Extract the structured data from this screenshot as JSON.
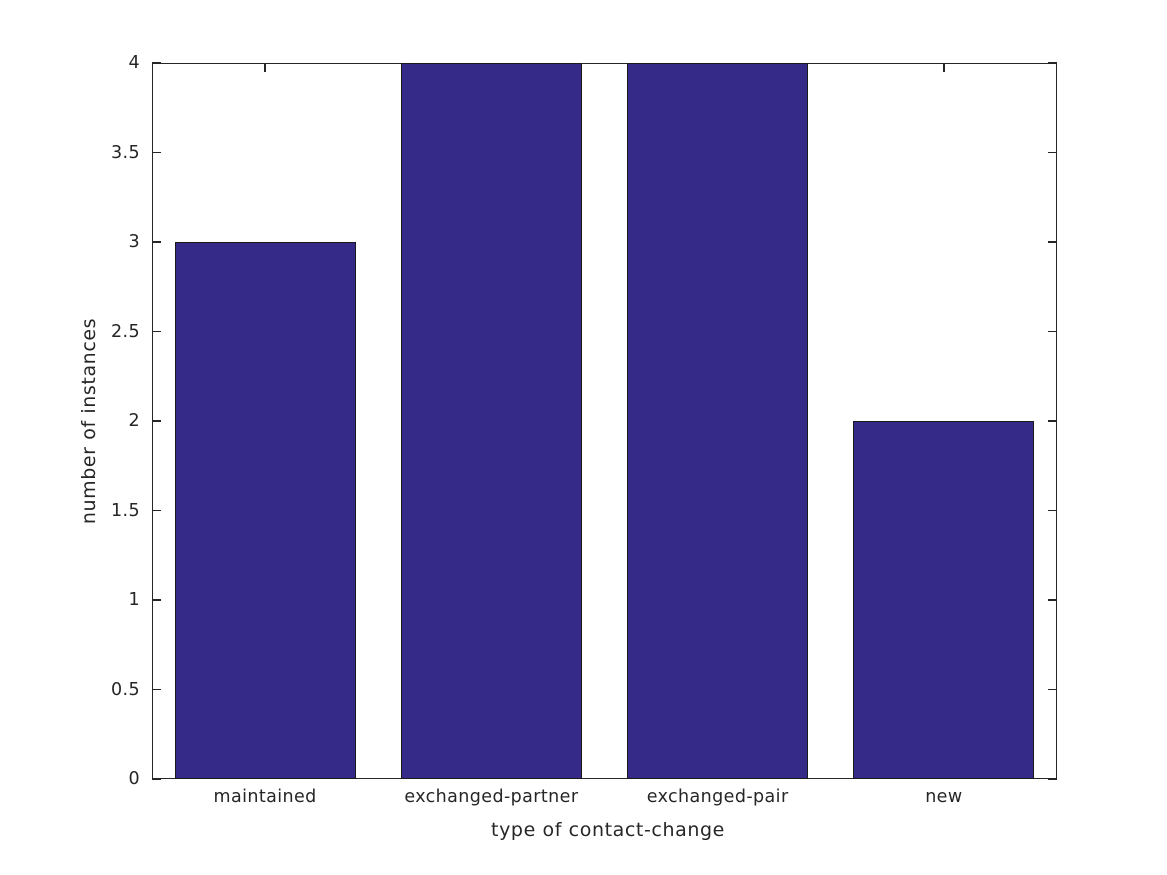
{
  "figure": {
    "background_color": "#ffffff"
  },
  "chart_data": {
    "type": "bar",
    "title": "",
    "xlabel": "type of contact-change",
    "ylabel": "number of instances",
    "categories": [
      "maintained",
      "exchanged-partner",
      "exchanged-pair",
      "new"
    ],
    "values": [
      3,
      4,
      4,
      2
    ],
    "ylim": [
      0,
      4
    ],
    "yticks": [
      0,
      0.5,
      1,
      1.5,
      2,
      2.5,
      3,
      3.5,
      4
    ],
    "ytick_labels": [
      "0",
      "0.5",
      "1",
      "1.5",
      "2",
      "2.5",
      "3",
      "3.5",
      "4"
    ],
    "bar_width_fraction": 0.8,
    "bar_color": "#352a87",
    "bar_edge_color": "#1a1a1a",
    "axis_color": "#262626",
    "text_color": "#262626",
    "grid": false,
    "legend": null,
    "ticks_direction": "in",
    "box": true
  }
}
